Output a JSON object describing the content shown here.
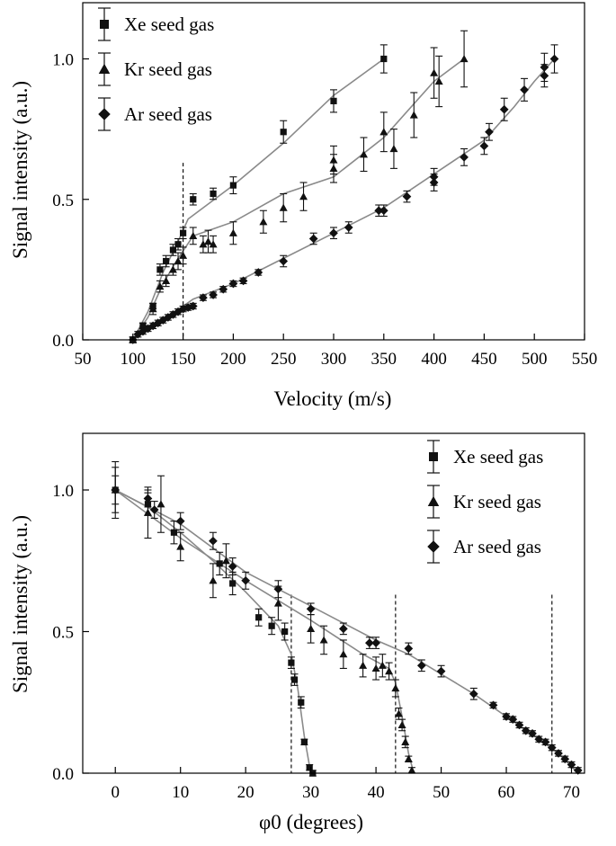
{
  "figure": {
    "panel_count": 2
  },
  "chart_data": [
    {
      "type": "line",
      "xlabel": "Velocity (m/s)",
      "ylabel": "Signal intensity (a.u.)",
      "xlim": [
        50,
        550
      ],
      "ylim": [
        0,
        1.2
      ],
      "xticks": [
        50,
        100,
        150,
        200,
        250,
        300,
        350,
        400,
        450,
        500,
        550
      ],
      "yticks": [
        0.0,
        0.5,
        1.0
      ],
      "ytick_labels": [
        "0.0",
        "0.5",
        "1.0"
      ],
      "legend_position": "top-left",
      "vlines": [
        150
      ],
      "series": [
        {
          "name": "Xe seed gas",
          "marker": "square",
          "points": [
            [
              100,
              0.0,
              0.01
            ],
            [
              110,
              0.05,
              0.01
            ],
            [
              120,
              0.12,
              0.01
            ],
            [
              127,
              0.25,
              0.02
            ],
            [
              133,
              0.28,
              0.02
            ],
            [
              140,
              0.32,
              0.02
            ],
            [
              145,
              0.34,
              0.02
            ],
            [
              150,
              0.38,
              0.02
            ],
            [
              160,
              0.5,
              0.02
            ],
            [
              180,
              0.52,
              0.02
            ],
            [
              200,
              0.55,
              0.03
            ],
            [
              250,
              0.74,
              0.04
            ],
            [
              300,
              0.85,
              0.04
            ],
            [
              350,
              1.0,
              0.05
            ]
          ],
          "fit": [
            [
              100,
              0.0
            ],
            [
              115,
              0.1
            ],
            [
              130,
              0.24
            ],
            [
              145,
              0.35
            ],
            [
              155,
              0.43
            ],
            [
              200,
              0.55
            ],
            [
              250,
              0.7
            ],
            [
              300,
              0.87
            ],
            [
              350,
              1.0
            ]
          ]
        },
        {
          "name": "Kr seed gas",
          "marker": "triangle",
          "points": [
            [
              100,
              0.0,
              0.01
            ],
            [
              110,
              0.05,
              0.01
            ],
            [
              120,
              0.11,
              0.02
            ],
            [
              127,
              0.19,
              0.02
            ],
            [
              133,
              0.21,
              0.02
            ],
            [
              140,
              0.25,
              0.02
            ],
            [
              145,
              0.28,
              0.03
            ],
            [
              150,
              0.3,
              0.03
            ],
            [
              160,
              0.37,
              0.03
            ],
            [
              170,
              0.34,
              0.03
            ],
            [
              175,
              0.35,
              0.04
            ],
            [
              180,
              0.34,
              0.03
            ],
            [
              200,
              0.38,
              0.04
            ],
            [
              230,
              0.42,
              0.04
            ],
            [
              250,
              0.47,
              0.05
            ],
            [
              270,
              0.51,
              0.05
            ],
            [
              300,
              0.61,
              0.05
            ],
            [
              300,
              0.64,
              0.05
            ],
            [
              330,
              0.66,
              0.06
            ],
            [
              350,
              0.74,
              0.07
            ],
            [
              360,
              0.68,
              0.07
            ],
            [
              380,
              0.8,
              0.08
            ],
            [
              400,
              0.95,
              0.09
            ],
            [
              405,
              0.92,
              0.09
            ],
            [
              430,
              1.0,
              0.1
            ]
          ],
          "fit": [
            [
              100,
              0.0
            ],
            [
              115,
              0.08
            ],
            [
              130,
              0.2
            ],
            [
              145,
              0.29
            ],
            [
              160,
              0.37
            ],
            [
              200,
              0.42
            ],
            [
              250,
              0.52
            ],
            [
              300,
              0.58
            ],
            [
              350,
              0.72
            ],
            [
              400,
              0.92
            ],
            [
              430,
              1.0
            ]
          ]
        },
        {
          "name": "Ar seed gas",
          "marker": "diamond",
          "points": [
            [
              100,
              0.0,
              0.01
            ],
            [
              105,
              0.02,
              0.01
            ],
            [
              110,
              0.03,
              0.01
            ],
            [
              115,
              0.04,
              0.01
            ],
            [
              120,
              0.05,
              0.01
            ],
            [
              125,
              0.06,
              0.01
            ],
            [
              130,
              0.07,
              0.01
            ],
            [
              135,
              0.08,
              0.01
            ],
            [
              140,
              0.09,
              0.01
            ],
            [
              145,
              0.1,
              0.01
            ],
            [
              150,
              0.11,
              0.01
            ],
            [
              155,
              0.115,
              0.01
            ],
            [
              160,
              0.12,
              0.01
            ],
            [
              170,
              0.15,
              0.01
            ],
            [
              180,
              0.16,
              0.01
            ],
            [
              190,
              0.18,
              0.01
            ],
            [
              200,
              0.2,
              0.01
            ],
            [
              210,
              0.21,
              0.01
            ],
            [
              225,
              0.24,
              0.01
            ],
            [
              250,
              0.28,
              0.02
            ],
            [
              280,
              0.36,
              0.02
            ],
            [
              300,
              0.38,
              0.02
            ],
            [
              315,
              0.4,
              0.02
            ],
            [
              345,
              0.46,
              0.02
            ],
            [
              350,
              0.46,
              0.02
            ],
            [
              373,
              0.51,
              0.02
            ],
            [
              400,
              0.56,
              0.03
            ],
            [
              400,
              0.58,
              0.03
            ],
            [
              430,
              0.65,
              0.03
            ],
            [
              450,
              0.69,
              0.03
            ],
            [
              455,
              0.74,
              0.03
            ],
            [
              470,
              0.82,
              0.04
            ],
            [
              490,
              0.89,
              0.04
            ],
            [
              510,
              0.94,
              0.04
            ],
            [
              510,
              0.97,
              0.05
            ],
            [
              520,
              1.0,
              0.05
            ]
          ],
          "fit": [
            [
              100,
              0.0
            ],
            [
              125,
              0.06
            ],
            [
              150,
              0.12
            ],
            [
              160,
              0.145
            ],
            [
              200,
              0.2
            ],
            [
              250,
              0.29
            ],
            [
              300,
              0.38
            ],
            [
              350,
              0.47
            ],
            [
              400,
              0.59
            ],
            [
              450,
              0.71
            ],
            [
              480,
              0.83
            ],
            [
              500,
              0.92
            ],
            [
              520,
              1.0
            ]
          ]
        }
      ]
    },
    {
      "type": "line",
      "xlabel": "φ0 (degrees)",
      "ylabel": "Signal intensity (a.u.)",
      "xlim": [
        -5,
        72
      ],
      "ylim": [
        0,
        1.2
      ],
      "xticks": [
        0,
        10,
        20,
        30,
        40,
        50,
        60,
        70
      ],
      "yticks": [
        0.0,
        0.5,
        1.0
      ],
      "ytick_labels": [
        "0.0",
        "0.5",
        "1.0"
      ],
      "legend_position": "top-right",
      "vlines": [
        27,
        43,
        67
      ],
      "series": [
        {
          "name": "Xe seed gas",
          "marker": "square",
          "points": [
            [
              0,
              1.0,
              0.1
            ],
            [
              5,
              0.95,
              0.04
            ],
            [
              9,
              0.85,
              0.04
            ],
            [
              16,
              0.74,
              0.04
            ],
            [
              18,
              0.67,
              0.04
            ],
            [
              22,
              0.55,
              0.03
            ],
            [
              24,
              0.52,
              0.03
            ],
            [
              26,
              0.5,
              0.03
            ],
            [
              27,
              0.39,
              0.02
            ],
            [
              27.5,
              0.33,
              0.02
            ],
            [
              28.5,
              0.25,
              0.02
            ],
            [
              29,
              0.11,
              0.01
            ],
            [
              29.8,
              0.02,
              0.01
            ],
            [
              30.3,
              0.0,
              0.01
            ]
          ],
          "fit": [
            [
              0,
              1.0
            ],
            [
              5,
              0.94
            ],
            [
              10,
              0.85
            ],
            [
              15,
              0.75
            ],
            [
              20,
              0.64
            ],
            [
              25,
              0.52
            ],
            [
              27,
              0.42
            ],
            [
              28,
              0.3
            ],
            [
              29,
              0.13
            ],
            [
              30,
              0.0
            ]
          ]
        },
        {
          "name": "Kr seed gas",
          "marker": "triangle",
          "points": [
            [
              0,
              1.0,
              0.08
            ],
            [
              5,
              0.92,
              0.09
            ],
            [
              7,
              0.95,
              0.1
            ],
            [
              10,
              0.8,
              0.05
            ],
            [
              15,
              0.68,
              0.06
            ],
            [
              17,
              0.75,
              0.06
            ],
            [
              25,
              0.6,
              0.06
            ],
            [
              30,
              0.51,
              0.05
            ],
            [
              32,
              0.47,
              0.05
            ],
            [
              35,
              0.42,
              0.05
            ],
            [
              38,
              0.38,
              0.04
            ],
            [
              40,
              0.37,
              0.04
            ],
            [
              41,
              0.38,
              0.04
            ],
            [
              42,
              0.36,
              0.03
            ],
            [
              43,
              0.3,
              0.03
            ],
            [
              43.5,
              0.21,
              0.02
            ],
            [
              44,
              0.17,
              0.02
            ],
            [
              44.5,
              0.11,
              0.02
            ],
            [
              45,
              0.05,
              0.01
            ],
            [
              45.5,
              0.01,
              0.01
            ]
          ],
          "fit": [
            [
              0,
              1.0
            ],
            [
              10,
              0.83
            ],
            [
              20,
              0.68
            ],
            [
              30,
              0.54
            ],
            [
              38,
              0.42
            ],
            [
              42,
              0.37
            ],
            [
              43,
              0.32
            ],
            [
              44,
              0.2
            ],
            [
              45,
              0.07
            ],
            [
              45.8,
              0.0
            ]
          ]
        },
        {
          "name": "Ar seed gas",
          "marker": "diamond",
          "points": [
            [
              0,
              1.0,
              0.05
            ],
            [
              5,
              0.97,
              0.03
            ],
            [
              6,
              0.93,
              0.03
            ],
            [
              10,
              0.89,
              0.03
            ],
            [
              15,
              0.82,
              0.03
            ],
            [
              18,
              0.73,
              0.03
            ],
            [
              20,
              0.68,
              0.03
            ],
            [
              25,
              0.65,
              0.03
            ],
            [
              30,
              0.58,
              0.02
            ],
            [
              35,
              0.51,
              0.02
            ],
            [
              39,
              0.46,
              0.02
            ],
            [
              40,
              0.46,
              0.02
            ],
            [
              45,
              0.44,
              0.02
            ],
            [
              47,
              0.38,
              0.02
            ],
            [
              50,
              0.36,
              0.02
            ],
            [
              55,
              0.28,
              0.02
            ],
            [
              58,
              0.24,
              0.01
            ],
            [
              60,
              0.2,
              0.01
            ],
            [
              61,
              0.19,
              0.01
            ],
            [
              62,
              0.17,
              0.01
            ],
            [
              63,
              0.15,
              0.01
            ],
            [
              64,
              0.14,
              0.01
            ],
            [
              65,
              0.12,
              0.01
            ],
            [
              66,
              0.11,
              0.01
            ],
            [
              67,
              0.09,
              0.01
            ],
            [
              68,
              0.07,
              0.01
            ],
            [
              69,
              0.05,
              0.01
            ],
            [
              70,
              0.03,
              0.01
            ],
            [
              71,
              0.01,
              0.01
            ]
          ],
          "fit": [
            [
              0,
              1.0
            ],
            [
              10,
              0.88
            ],
            [
              20,
              0.71
            ],
            [
              30,
              0.59
            ],
            [
              40,
              0.47
            ],
            [
              45,
              0.42
            ],
            [
              50,
              0.35
            ],
            [
              55,
              0.28
            ],
            [
              60,
              0.2
            ],
            [
              65,
              0.12
            ],
            [
              68,
              0.07
            ],
            [
              71,
              0.0
            ]
          ]
        }
      ]
    }
  ]
}
